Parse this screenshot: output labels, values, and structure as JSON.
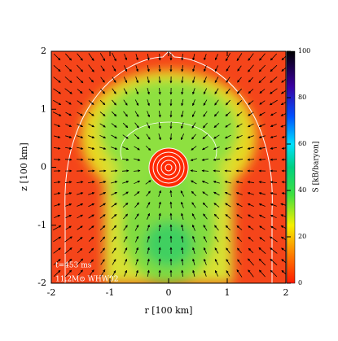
{
  "chart_data": {
    "type": "heatmap",
    "xlabel": "r [100 km]",
    "ylabel": "z [100 km]",
    "xlim": [
      -2,
      2
    ],
    "ylim": [
      -2,
      2
    ],
    "xticks": [
      -2,
      -1,
      0,
      1,
      2
    ],
    "yticks": [
      -2,
      -1,
      0,
      1,
      2
    ],
    "colorbar": {
      "label": "S [kB/baryon]",
      "lim": [
        0,
        100
      ],
      "ticks": [
        0,
        20,
        40,
        60,
        80,
        100
      ]
    },
    "annotations": [
      "t=453 ms",
      "11.2M⊙ WHW02"
    ]
  }
}
